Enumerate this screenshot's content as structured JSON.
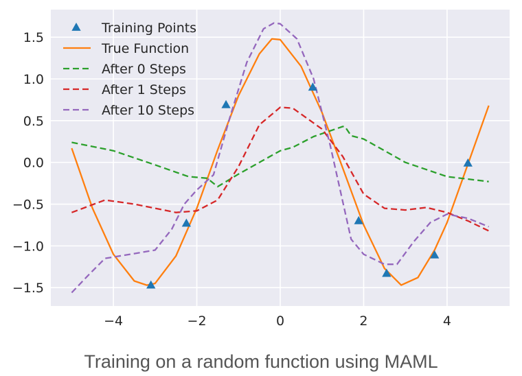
{
  "caption": "Training on a random function using MAML",
  "chart_data": {
    "type": "line",
    "title": "",
    "xlabel": "",
    "ylabel": "",
    "xlim": [
      -5.5,
      5.5
    ],
    "ylim": [
      -1.72,
      1.83
    ],
    "x_ticks": [
      -4,
      -2,
      0,
      2,
      4
    ],
    "x_tick_labels": [
      "−4",
      "−2",
      "0",
      "2",
      "4"
    ],
    "y_ticks": [
      1.5,
      1.0,
      0.5,
      0.0,
      -0.5,
      -1.0,
      -1.5
    ],
    "y_tick_labels": [
      "1.5",
      "1.0",
      "0.5",
      "0.0",
      "−0.5",
      "−1.0",
      "−1.5"
    ],
    "grid": true,
    "legend_position": "top-left",
    "background": "#eaeaf2",
    "series": [
      {
        "name": "Training Points",
        "kind": "scatter",
        "marker": "triangle",
        "color": "#1f77b4",
        "x": [
          -3.1,
          -2.25,
          -1.3,
          0.78,
          1.88,
          2.55,
          3.7,
          4.5
        ],
        "y": [
          -1.47,
          -0.73,
          0.69,
          0.9,
          -0.7,
          -1.33,
          -1.11,
          -0.01
        ]
      },
      {
        "name": "True Function",
        "kind": "line",
        "dash": "solid",
        "color": "#ff7f0e",
        "x": [
          -5.0,
          -4.5,
          -4.0,
          -3.5,
          -3.2,
          -3.0,
          -2.5,
          -2.0,
          -1.5,
          -1.0,
          -0.5,
          -0.2,
          0.0,
          0.5,
          1.0,
          1.5,
          2.0,
          2.5,
          2.9,
          3.3,
          3.7,
          4.0,
          4.5,
          5.0
        ],
        "y": [
          0.17,
          -0.55,
          -1.1,
          -1.42,
          -1.47,
          -1.45,
          -1.12,
          -0.55,
          0.15,
          0.8,
          1.3,
          1.48,
          1.47,
          1.15,
          0.6,
          -0.07,
          -0.75,
          -1.27,
          -1.47,
          -1.38,
          -1.05,
          -0.72,
          -0.02,
          0.68
        ]
      },
      {
        "name": "After 0 Steps",
        "kind": "line",
        "dash": "dashed",
        "color": "#2ca02c",
        "x": [
          -5.0,
          -4.0,
          -3.0,
          -2.2,
          -1.75,
          -1.5,
          -1.0,
          -0.5,
          0.0,
          0.3,
          0.8,
          1.5,
          1.55,
          1.7,
          2.0,
          3.0,
          4.0,
          4.5,
          5.0
        ],
        "y": [
          0.24,
          0.14,
          -0.03,
          -0.17,
          -0.19,
          -0.29,
          -0.14,
          0.0,
          0.14,
          0.18,
          0.31,
          0.43,
          0.43,
          0.32,
          0.28,
          0.0,
          -0.17,
          -0.2,
          -0.23
        ]
      },
      {
        "name": "After 1 Steps",
        "kind": "line",
        "dash": "dashed",
        "color": "#d62728",
        "x": [
          -5.0,
          -4.2,
          -3.5,
          -3.0,
          -2.5,
          -2.0,
          -1.5,
          -1.0,
          -0.5,
          0.0,
          0.3,
          1.0,
          1.5,
          2.0,
          2.5,
          3.0,
          3.5,
          4.0,
          4.5,
          5.0
        ],
        "y": [
          -0.6,
          -0.45,
          -0.5,
          -0.55,
          -0.6,
          -0.58,
          -0.45,
          -0.05,
          0.45,
          0.66,
          0.65,
          0.4,
          0.07,
          -0.38,
          -0.55,
          -0.57,
          -0.54,
          -0.6,
          -0.7,
          -0.82
        ]
      },
      {
        "name": "After 10 Steps",
        "kind": "line",
        "dash": "dashed",
        "color": "#9467bd",
        "x": [
          -5.0,
          -4.6,
          -4.2,
          -3.6,
          -3.0,
          -2.6,
          -2.3,
          -2.0,
          -1.6,
          -1.2,
          -0.8,
          -0.4,
          -0.15,
          0.0,
          0.4,
          0.8,
          1.2,
          1.7,
          2.0,
          2.5,
          2.8,
          3.2,
          3.6,
          4.0,
          4.5,
          5.0
        ],
        "y": [
          -1.56,
          -1.35,
          -1.15,
          -1.1,
          -1.05,
          -0.8,
          -0.5,
          -0.33,
          -0.15,
          0.55,
          1.2,
          1.6,
          1.67,
          1.66,
          1.48,
          1.0,
          0.2,
          -0.92,
          -1.1,
          -1.22,
          -1.22,
          -0.95,
          -0.72,
          -0.62,
          -0.67,
          -0.77
        ]
      }
    ]
  }
}
